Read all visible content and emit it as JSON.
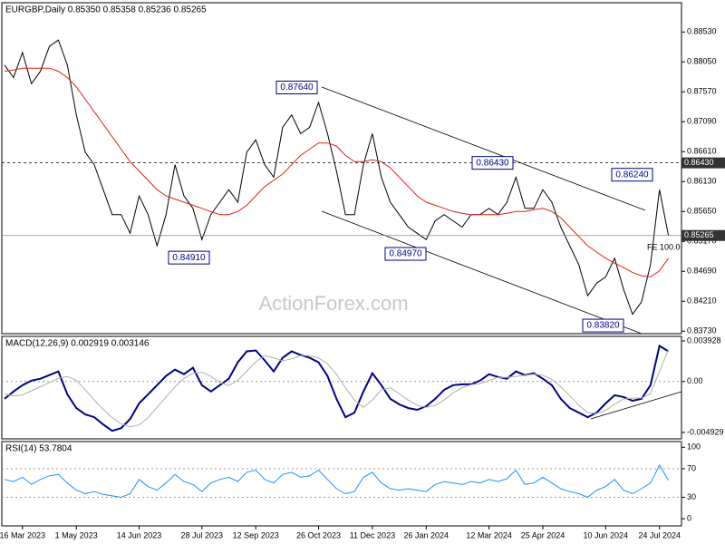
{
  "chart_data": [
    {
      "type": "line",
      "title": "EURGBP,Daily  0.85350 0.85358 0.85236 0.85265",
      "watermark": "ActionForex.com",
      "fe_label": "FE 100.0",
      "categories": [
        null,
        null,
        "16 Mar 2023",
        null,
        null,
        null,
        null,
        null,
        "1 May 2023",
        null,
        null,
        null,
        null,
        null,
        null,
        "14 Jun 2023",
        null,
        null,
        null,
        null,
        null,
        null,
        "28 Jul 2023",
        null,
        null,
        null,
        null,
        null,
        "12 Sep 2023",
        null,
        null,
        null,
        null,
        null,
        null,
        "26 Oct 2023",
        null,
        null,
        null,
        null,
        null,
        "11 Dec 2023",
        null,
        null,
        null,
        null,
        null,
        "26 Jan 2024",
        null,
        null,
        null,
        null,
        null,
        null,
        "12 Mar 2024",
        null,
        null,
        null,
        null,
        null,
        "25 Apr 2024",
        null,
        null,
        null,
        null,
        null,
        null,
        "10 Jun 2024",
        null,
        null,
        null,
        null,
        null,
        "24 Jul 2024",
        null
      ],
      "series": [
        {
          "color": "#000000",
          "values": [
            0.88,
            0.878,
            0.882,
            0.877,
            0.879,
            0.883,
            0.884,
            0.88,
            0.872,
            0.866,
            0.864,
            0.86,
            0.856,
            0.856,
            0.853,
            0.859,
            0.856,
            0.851,
            0.856,
            0.864,
            0.859,
            0.857,
            0.852,
            0.856,
            0.858,
            0.86,
            0.858,
            0.866,
            0.868,
            0.864,
            0.862,
            0.87,
            0.872,
            0.869,
            0.87,
            0.874,
            0.869,
            0.863,
            0.856,
            0.856,
            0.864,
            0.869,
            0.862,
            0.858,
            0.856,
            0.854,
            0.853,
            0.852,
            0.855,
            0.856,
            0.855,
            0.854,
            0.856,
            0.856,
            0.857,
            0.856,
            0.858,
            0.862,
            0.857,
            0.857,
            0.86,
            0.858,
            0.854,
            0.851,
            0.848,
            0.843,
            0.845,
            0.846,
            0.849,
            0.844,
            0.84,
            0.842,
            0.848,
            0.86,
            0.85265
          ]
        },
        {
          "color": "#e0201c",
          "values": [
            0.879,
            0.8792,
            0.8795,
            0.8795,
            0.8795,
            0.8795,
            0.879,
            0.878,
            0.8765,
            0.8745,
            0.8725,
            0.8705,
            0.8685,
            0.8665,
            0.8645,
            0.863,
            0.8615,
            0.86,
            0.859,
            0.8585,
            0.858,
            0.8575,
            0.857,
            0.8565,
            0.856,
            0.856,
            0.8565,
            0.8575,
            0.859,
            0.8605,
            0.8615,
            0.8625,
            0.864,
            0.8655,
            0.8665,
            0.8675,
            0.8675,
            0.867,
            0.8655,
            0.8645,
            0.8645,
            0.8648,
            0.8645,
            0.8635,
            0.862,
            0.8605,
            0.859,
            0.858,
            0.8575,
            0.857,
            0.8565,
            0.8562,
            0.856,
            0.856,
            0.856,
            0.856,
            0.8562,
            0.8565,
            0.8565,
            0.8568,
            0.857,
            0.8565,
            0.8555,
            0.854,
            0.8525,
            0.851,
            0.85,
            0.849,
            0.8482,
            0.8475,
            0.8467,
            0.8462,
            0.846,
            0.847,
            0.849
          ]
        }
      ],
      "ylim": [
        0.8369,
        0.89
      ],
      "yticks": [
        {
          "value": 0.8853,
          "label": "0.88530"
        },
        {
          "value": 0.8805,
          "label": "0.88050"
        },
        {
          "value": 0.8757,
          "label": "0.87570"
        },
        {
          "value": 0.8709,
          "label": "0.87090"
        },
        {
          "value": 0.8661,
          "label": "0.86610"
        },
        {
          "value": 0.8613,
          "label": "0.86130"
        },
        {
          "value": 0.8565,
          "label": "0.85650"
        },
        {
          "value": 0.8517,
          "label": "0.85170"
        },
        {
          "value": 0.8469,
          "label": "0.84690"
        },
        {
          "value": 0.8421,
          "label": "0.84210"
        },
        {
          "value": 0.8373,
          "label": "0.83730"
        }
      ],
      "annotations": [
        {
          "value": 0.8764,
          "label": "0.87640"
        },
        {
          "value": 0.8643,
          "label": "0.86430"
        },
        {
          "value": 0.8624,
          "label": "0.86240"
        },
        {
          "value": 0.8491,
          "label": "0.84910"
        },
        {
          "value": 0.8497,
          "label": "0.84970"
        },
        {
          "value": 0.8382,
          "label": "0.83820"
        }
      ],
      "price_tags": [
        {
          "value": 0.8643,
          "label": "0.86430"
        },
        0.85265
      ]
    },
    {
      "type": "line",
      "title": "MACD(12,26,9) 0.002919 0.003146",
      "series": [
        {
          "color": "#00008b",
          "values": [
            -0.00168,
            -0.00097,
            -0.00035,
            9e-05,
            0.00027,
            0.00062,
            0.00097,
            -0.00124,
            -0.00257,
            -0.00319,
            -0.00345,
            -0.00416,
            -0.00478,
            -0.00451,
            -0.00363,
            -0.00212,
            -0.00124,
            -0.00035,
            0.00053,
            0.00115,
            0.00071,
            0.00133,
            -0.00035,
            -0.00097,
            -0.00035,
            0.00027,
            0.00186,
            0.00292,
            0.00301,
            0.00204,
            0.00097,
            0.0023,
            0.00292,
            0.00257,
            0.0023,
            0.00186,
            0.00053,
            -0.00168,
            -0.00345,
            -0.00301,
            -0.00097,
            0.0008,
            -0.00035,
            -0.00168,
            -0.00221,
            -0.00257,
            -0.00274,
            -0.00239,
            -0.00168,
            -0.0008,
            -0.00035,
            -0.00027,
            -0.00027,
            9e-05,
            0.00071,
            0.00044,
            0.00027,
            0.00097,
            0.00062,
            0.0008,
            0.00027,
            -0.00035,
            -0.00168,
            -0.00257,
            -0.00301,
            -0.00345,
            -0.00301,
            -0.00212,
            -0.00133,
            -0.0015,
            -0.00186,
            -0.00168,
            -0.00035,
            0.00345,
            0.00292
          ]
        },
        {
          "color": "#b0b0b0",
          "values": [
            -0.0012,
            -0.0014,
            -0.0013,
            -0.0009,
            -0.0005,
            -0.0001,
            0.0003,
            0.0005,
            0.0001,
            -0.0008,
            -0.0018,
            -0.0027,
            -0.0035,
            -0.0041,
            -0.0044,
            -0.0042,
            -0.0035,
            -0.0025,
            -0.0015,
            -0.0005,
            0.0003,
            0.0008,
            0.0009,
            0.0005,
            -0.0001,
            -0.0004,
            0.0001,
            0.001,
            0.0019,
            0.0025,
            0.0023,
            0.002,
            0.0022,
            0.0025,
            0.0025,
            0.0023,
            0.0017,
            0.0007,
            -0.0006,
            -0.0018,
            -0.0025,
            -0.0018,
            -0.0008,
            -0.0006,
            -0.0012,
            -0.0018,
            -0.0023,
            -0.0025,
            -0.0023,
            -0.0018,
            -0.0011,
            -0.0006,
            -0.0003,
            -0.0002,
            0.0001,
            0.0004,
            0.0004,
            0.0005,
            0.0006,
            0.0007,
            0.0006,
            0.0002,
            -0.0005,
            -0.0014,
            -0.0023,
            -0.003,
            -0.0031,
            -0.0028,
            -0.0022,
            -0.0017,
            -0.0016,
            -0.0016,
            -0.0012,
            0.001,
            0.0031
          ]
        }
      ],
      "ylim": [
        -0.00555,
        0.00437
      ],
      "yticks": [
        0.003928,
        {
          "value": 0,
          "label": "0.00"
        },
        -0.004929
      ],
      "reference_lines": [
        0
      ]
    },
    {
      "type": "line",
      "title": "RSI(14) 53.7804",
      "series": [
        {
          "color": "#1e90ff",
          "values": [
            55,
            52,
            58,
            48,
            55,
            60,
            62,
            50,
            40,
            35,
            38,
            34,
            32,
            30,
            35,
            55,
            45,
            40,
            50,
            62,
            52,
            48,
            38,
            50,
            55,
            58,
            52,
            65,
            68,
            55,
            50,
            62,
            65,
            58,
            60,
            68,
            55,
            42,
            35,
            38,
            58,
            65,
            50,
            42,
            40,
            42,
            40,
            38,
            48,
            52,
            50,
            48,
            52,
            50,
            55,
            52,
            56,
            68,
            48,
            50,
            58,
            50,
            42,
            38,
            35,
            30,
            40,
            45,
            55,
            40,
            35,
            42,
            50,
            75,
            53.78
          ]
        }
      ],
      "ylim": [
        -10,
        108
      ],
      "yticks": [
        100,
        70,
        30,
        0
      ],
      "reference_lines": [
        70,
        30
      ]
    }
  ]
}
